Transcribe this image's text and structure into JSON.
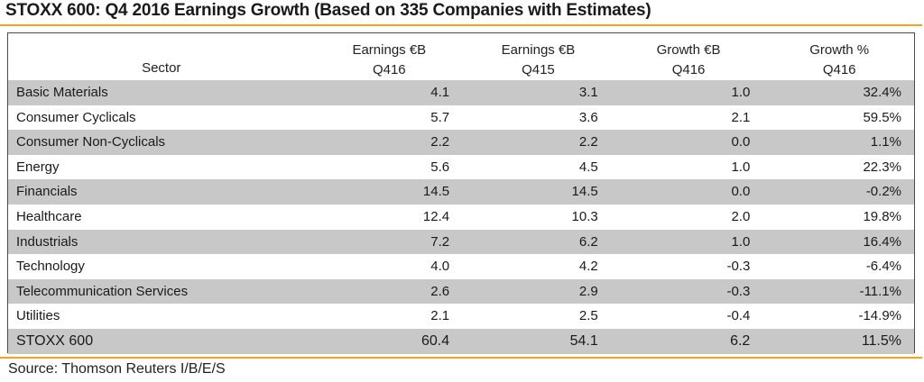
{
  "title": "STOXX 600: Q4 2016 Earnings Growth (Based on 335 Companies with Estimates)",
  "source": "Source: Thomson Reuters I/B/E/S",
  "colors": {
    "accent_rule": "#f5a21c",
    "row_shade": "#c8c8c8",
    "border": "#4a4a4a"
  },
  "table": {
    "headers": [
      {
        "line1": "",
        "line2": "Sector"
      },
      {
        "line1": "Earnings €B",
        "line2": "Q416"
      },
      {
        "line1": "Earnings €B",
        "line2": "Q415"
      },
      {
        "line1": "Growth €B",
        "line2": "Q416"
      },
      {
        "line1": "Growth %",
        "line2": "Q416"
      }
    ],
    "rows": [
      {
        "sector": "Basic Materials",
        "earn_q416": "4.1",
        "earn_q415": "3.1",
        "growth_eur": "1.0",
        "growth_pct": "32.4%"
      },
      {
        "sector": "Consumer Cyclicals",
        "earn_q416": "5.7",
        "earn_q415": "3.6",
        "growth_eur": "2.1",
        "growth_pct": "59.5%"
      },
      {
        "sector": "Consumer Non-Cyclicals",
        "earn_q416": "2.2",
        "earn_q415": "2.2",
        "growth_eur": "0.0",
        "growth_pct": "1.1%"
      },
      {
        "sector": "Energy",
        "earn_q416": "5.6",
        "earn_q415": "4.5",
        "growth_eur": "1.0",
        "growth_pct": "22.3%"
      },
      {
        "sector": "Financials",
        "earn_q416": "14.5",
        "earn_q415": "14.5",
        "growth_eur": "0.0",
        "growth_pct": "-0.2%"
      },
      {
        "sector": "Healthcare",
        "earn_q416": "12.4",
        "earn_q415": "10.3",
        "growth_eur": "2.0",
        "growth_pct": "19.8%"
      },
      {
        "sector": "Industrials",
        "earn_q416": "7.2",
        "earn_q415": "6.2",
        "growth_eur": "1.0",
        "growth_pct": "16.4%"
      },
      {
        "sector": "Technology",
        "earn_q416": "4.0",
        "earn_q415": "4.2",
        "growth_eur": "-0.3",
        "growth_pct": "-6.4%"
      },
      {
        "sector": "Telecommunication Services",
        "earn_q416": "2.6",
        "earn_q415": "2.9",
        "growth_eur": "-0.3",
        "growth_pct": "-11.1%"
      },
      {
        "sector": "Utilities",
        "earn_q416": "2.1",
        "earn_q415": "2.5",
        "growth_eur": "-0.4",
        "growth_pct": "-14.9%"
      },
      {
        "sector": "STOXX 600",
        "earn_q416": "60.4",
        "earn_q415": "54.1",
        "growth_eur": "6.2",
        "growth_pct": "11.5%"
      }
    ]
  }
}
